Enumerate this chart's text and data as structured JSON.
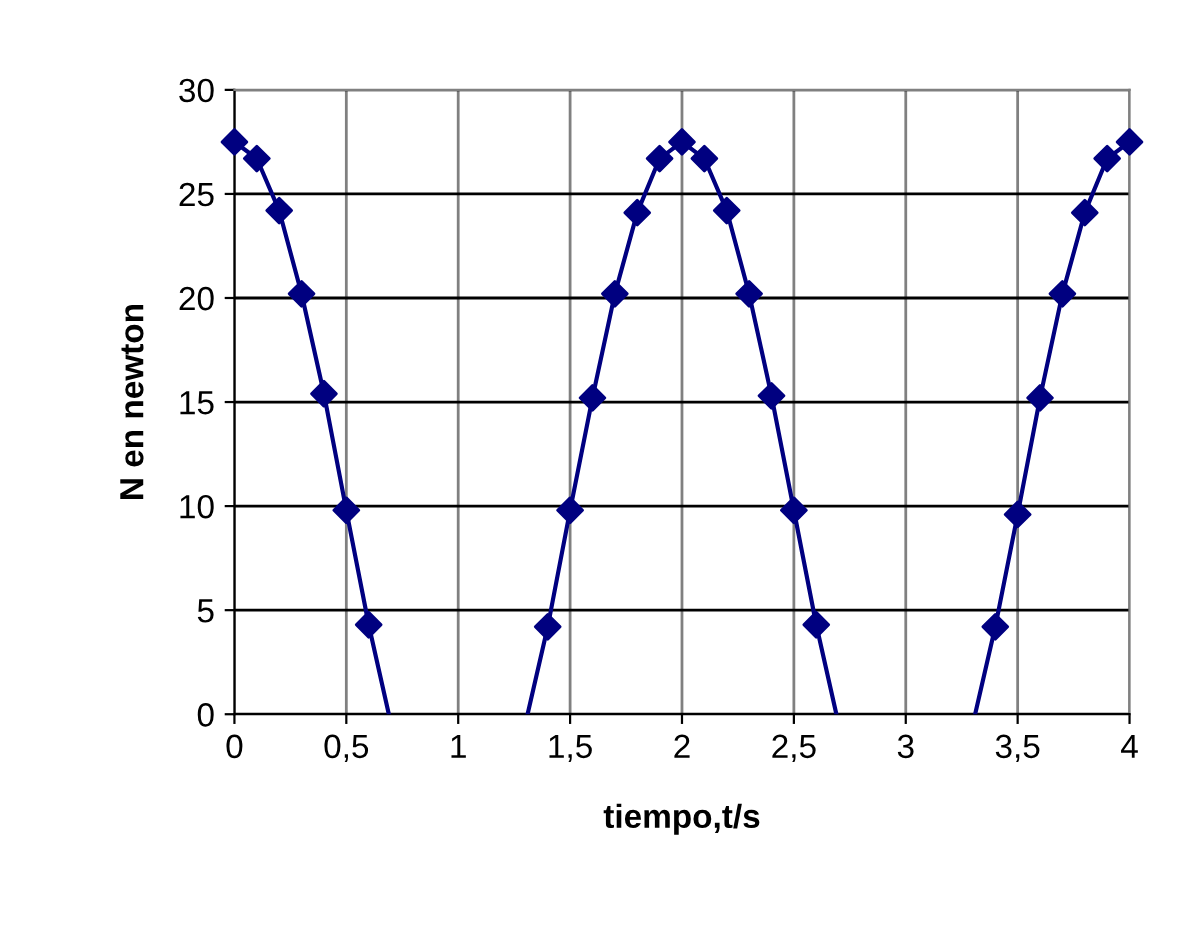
{
  "chart_data": {
    "type": "line",
    "xlabel": "tiempo,t/s",
    "ylabel": "N en newton",
    "xlim": [
      0,
      4
    ],
    "ylim": [
      0,
      30
    ],
    "xticks": [
      {
        "value": 0,
        "label": "0"
      },
      {
        "value": 0.5,
        "label": "0,5"
      },
      {
        "value": 1,
        "label": "1"
      },
      {
        "value": 1.5,
        "label": "1,5"
      },
      {
        "value": 2,
        "label": "2"
      },
      {
        "value": 2.5,
        "label": "2,5"
      },
      {
        "value": 3,
        "label": "3"
      },
      {
        "value": 3.5,
        "label": "3,5"
      },
      {
        "value": 4,
        "label": "4"
      }
    ],
    "yticks": [
      0,
      5,
      10,
      15,
      20,
      25,
      30
    ],
    "grid": true,
    "legend": false,
    "series": [
      {
        "marker": "none",
        "line_style": "solid",
        "color": "#000080",
        "x": [
          0,
          0.1,
          0.2,
          0.3,
          0.4,
          0.5,
          0.6,
          0.69,
          null,
          1.31,
          1.4,
          1.5,
          1.6,
          1.7,
          1.8,
          1.9,
          2.0,
          2.1,
          2.2,
          2.3,
          2.4,
          2.5,
          2.6,
          2.69,
          null,
          3.31,
          3.4,
          3.5,
          3.6,
          3.7,
          3.8,
          3.9,
          4.0
        ],
        "values": [
          27.5,
          26.7,
          24.2,
          20.2,
          15.4,
          9.8,
          4.3,
          0,
          null,
          0,
          4.2,
          9.8,
          15.2,
          20.2,
          24.1,
          26.7,
          27.5,
          26.7,
          24.2,
          20.2,
          15.3,
          9.8,
          4.3,
          0,
          null,
          0,
          4.2,
          9.6,
          15.2,
          20.2,
          24.1,
          26.7,
          27.5
        ]
      },
      {
        "type": "scatter",
        "marker": "diamond",
        "color": "#000080",
        "x": [
          0,
          0.1,
          0.2,
          0.3,
          0.4,
          0.5,
          0.6,
          1.4,
          1.5,
          1.6,
          1.7,
          1.8,
          1.9,
          2.0,
          2.1,
          2.2,
          2.3,
          2.4,
          2.5,
          2.6,
          3.4,
          3.5,
          3.6,
          3.7,
          3.8,
          3.9,
          4.0
        ],
        "values": [
          27.5,
          26.7,
          24.2,
          20.2,
          15.4,
          9.8,
          4.3,
          4.2,
          9.8,
          15.2,
          20.2,
          24.1,
          26.7,
          27.5,
          26.7,
          24.2,
          20.2,
          15.3,
          9.8,
          4.3,
          4.2,
          9.6,
          15.2,
          20.2,
          24.1,
          26.7,
          27.5
        ]
      }
    ]
  }
}
